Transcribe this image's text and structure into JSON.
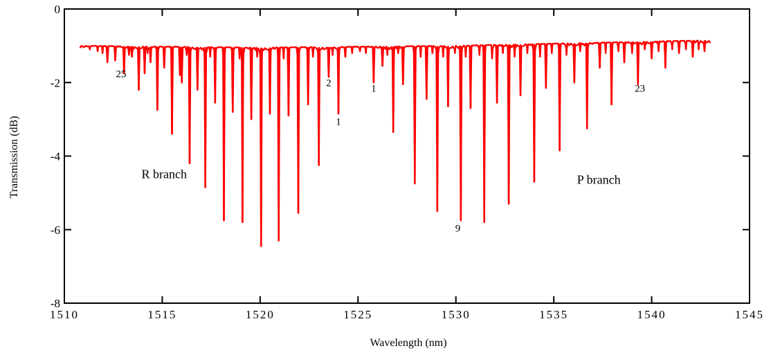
{
  "chart_data": {
    "type": "line",
    "xlabel": "Wavelength (nm)",
    "ylabel": "Transmission (dB)",
    "xlim": [
      1510,
      1545
    ],
    "ylim": [
      0,
      8
    ],
    "y_inverted": true,
    "grid": false,
    "x_ticks": [
      1510,
      1515,
      1520,
      1525,
      1530,
      1535,
      1540,
      1545
    ],
    "x_tick_labels": [
      "1510",
      "1515",
      "1520",
      "1525",
      "1530",
      "1535",
      "1540",
      "1545"
    ],
    "y_ticks": [
      0,
      2,
      4,
      6,
      8
    ],
    "y_tick_labels": [
      "0",
      "-2",
      "-4",
      "-6",
      "-8"
    ],
    "series": [
      {
        "color": "#ff0000",
        "baseline": {
          "x": [
            1510.8,
            1520,
            1530,
            1543
          ],
          "y": [
            1.0,
            1.05,
            1.0,
            0.85
          ]
        },
        "strong_dips": [
          [
            1512.2,
            1.45
          ],
          [
            1512.6,
            1.4
          ],
          [
            1513.05,
            1.75
          ],
          [
            1513.3,
            1.25
          ],
          [
            1513.45,
            1.3
          ],
          [
            1513.8,
            2.2
          ],
          [
            1514.1,
            1.75
          ],
          [
            1514.4,
            1.45
          ],
          [
            1514.75,
            2.75
          ],
          [
            1515.1,
            1.6
          ],
          [
            1515.5,
            3.4
          ],
          [
            1515.9,
            1.8
          ],
          [
            1516.0,
            2.0
          ],
          [
            1516.4,
            4.2
          ],
          [
            1516.8,
            2.2
          ],
          [
            1517.2,
            4.85
          ],
          [
            1517.7,
            2.55
          ],
          [
            1518.15,
            5.75
          ],
          [
            1518.6,
            2.8
          ],
          [
            1519.1,
            5.8
          ],
          [
            1519.55,
            3.0
          ],
          [
            1520.05,
            6.45
          ],
          [
            1520.5,
            2.85
          ],
          [
            1520.95,
            6.3
          ],
          [
            1521.45,
            2.9
          ],
          [
            1521.95,
            5.55
          ],
          [
            1522.45,
            2.6
          ],
          [
            1523.0,
            4.25
          ],
          [
            1523.5,
            1.85
          ],
          [
            1524.0,
            2.85
          ],
          [
            1524.35,
            1.3
          ],
          [
            1525.8,
            2.0
          ],
          [
            1526.25,
            1.55
          ],
          [
            1526.8,
            3.35
          ],
          [
            1527.3,
            2.05
          ],
          [
            1527.9,
            4.75
          ],
          [
            1528.5,
            2.45
          ],
          [
            1529.05,
            5.5
          ],
          [
            1529.6,
            2.65
          ],
          [
            1530.25,
            5.75
          ],
          [
            1530.75,
            2.7
          ],
          [
            1531.45,
            5.8
          ],
          [
            1532.1,
            2.55
          ],
          [
            1532.7,
            5.3
          ],
          [
            1533.3,
            2.35
          ],
          [
            1534.0,
            4.7
          ],
          [
            1534.6,
            2.15
          ],
          [
            1535.3,
            3.85
          ],
          [
            1536.05,
            2.0
          ],
          [
            1536.7,
            3.25
          ],
          [
            1537.35,
            1.6
          ],
          [
            1537.95,
            2.6
          ],
          [
            1538.6,
            1.45
          ],
          [
            1539.3,
            2.05
          ],
          [
            1540.0,
            1.35
          ],
          [
            1540.7,
            1.6
          ],
          [
            1541.4,
            1.2
          ],
          [
            1542.1,
            1.3
          ],
          [
            1542.7,
            1.15
          ]
        ],
        "weak_dips": [
          [
            1511.3,
            1.1
          ],
          [
            1511.7,
            1.15
          ],
          [
            1511.95,
            1.2
          ],
          [
            1514.25,
            1.2
          ],
          [
            1516.25,
            1.25
          ],
          [
            1517.45,
            1.3
          ],
          [
            1518.95,
            1.35
          ],
          [
            1519.85,
            1.3
          ],
          [
            1521.2,
            1.35
          ],
          [
            1522.7,
            1.3
          ],
          [
            1523.7,
            1.25
          ],
          [
            1524.7,
            1.2
          ],
          [
            1525.1,
            1.15
          ],
          [
            1525.4,
            1.2
          ],
          [
            1526.5,
            1.25
          ],
          [
            1527.05,
            1.2
          ],
          [
            1528.2,
            1.3
          ],
          [
            1528.8,
            1.2
          ],
          [
            1529.35,
            1.3
          ],
          [
            1529.95,
            1.2
          ],
          [
            1530.5,
            1.3
          ],
          [
            1531.2,
            1.25
          ],
          [
            1531.85,
            1.35
          ],
          [
            1532.4,
            1.2
          ],
          [
            1533.0,
            1.3
          ],
          [
            1533.65,
            1.2
          ],
          [
            1534.3,
            1.3
          ],
          [
            1534.9,
            1.2
          ],
          [
            1535.65,
            1.25
          ],
          [
            1536.35,
            1.15
          ],
          [
            1537.65,
            1.2
          ],
          [
            1538.3,
            1.15
          ],
          [
            1539.0,
            1.2
          ],
          [
            1539.65,
            1.1
          ],
          [
            1540.35,
            1.15
          ],
          [
            1541.05,
            1.1
          ],
          [
            1541.75,
            1.1
          ],
          [
            1542.4,
            1.1
          ]
        ]
      }
    ],
    "annotations": [
      {
        "text": "25",
        "x": 1512.9,
        "y": 1.85
      },
      {
        "text": "2",
        "x": 1523.5,
        "y": 2.1
      },
      {
        "text": "1",
        "x": 1525.8,
        "y": 2.25
      },
      {
        "text": "1",
        "x": 1524.0,
        "y": 3.15
      },
      {
        "text": "23",
        "x": 1539.4,
        "y": 2.25
      },
      {
        "text": "9",
        "x": 1530.1,
        "y": 6.05
      },
      {
        "text": "R branch",
        "x": 1515.1,
        "y": 4.6
      },
      {
        "text": "P branch",
        "x": 1537.3,
        "y": 4.75
      }
    ]
  }
}
